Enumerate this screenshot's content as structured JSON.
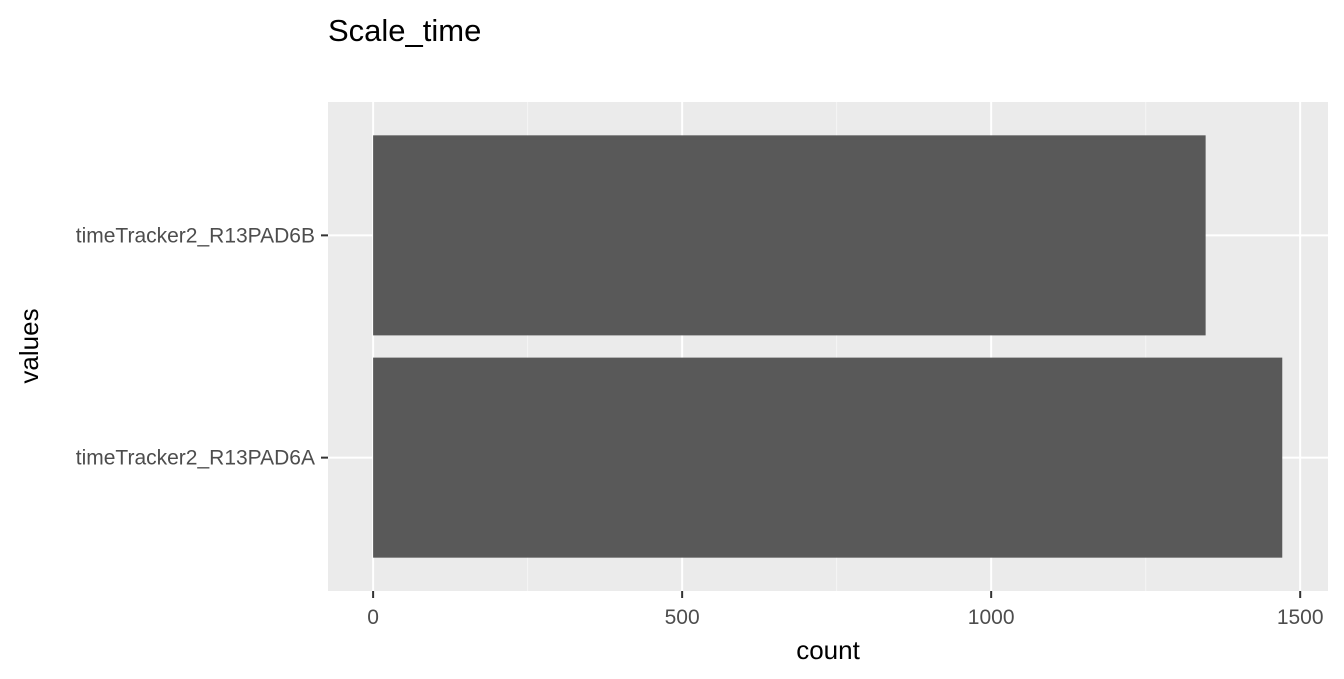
{
  "chart_data": {
    "type": "bar",
    "orientation": "horizontal",
    "title": "Scale_time",
    "xlabel": "count",
    "ylabel": "values",
    "categories": [
      "timeTracker2_R13PAD6A",
      "timeTracker2_R13PAD6B"
    ],
    "values": [
      1471,
      1347
    ],
    "xlim": [
      -73,
      1545
    ],
    "xticks": [
      0,
      500,
      1000,
      1500
    ],
    "xtick_labels": [
      "0",
      "500",
      "1000",
      "1500"
    ],
    "grid": true,
    "legend": "none",
    "colors": {
      "bar": "#595959",
      "panel_background": "#ebebeb",
      "grid_major": "#ffffff",
      "grid_minor": "#f5f5f5",
      "tick_label": "#4d4d4d",
      "tick_mark": "#333333"
    }
  }
}
